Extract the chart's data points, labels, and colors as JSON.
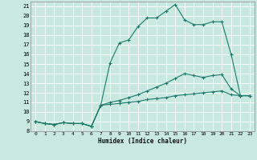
{
  "xlabel": "Humidex (Indice chaleur)",
  "bg_color": "#c8e8e0",
  "grid_color": "#ffffff",
  "line_color": "#1a7a6a",
  "xlim": [
    -0.5,
    23.5
  ],
  "ylim": [
    8,
    21.5
  ],
  "xticks": [
    0,
    1,
    2,
    3,
    4,
    5,
    6,
    7,
    8,
    9,
    10,
    11,
    12,
    13,
    14,
    15,
    16,
    17,
    18,
    19,
    20,
    21,
    22,
    23
  ],
  "yticks": [
    8,
    9,
    10,
    11,
    12,
    13,
    14,
    15,
    16,
    17,
    18,
    19,
    20,
    21
  ],
  "series": [
    {
      "x": [
        0,
        1,
        2,
        3,
        4,
        5,
        6,
        7,
        8,
        9,
        10,
        11,
        12,
        13,
        14,
        15,
        16,
        17,
        18,
        19,
        20,
        21,
        22,
        23
      ],
      "y": [
        9,
        8.8,
        8.7,
        8.9,
        8.8,
        8.8,
        8.5,
        10.7,
        15.1,
        17.2,
        17.5,
        18.9,
        19.8,
        19.8,
        20.5,
        21.2,
        19.6,
        19.1,
        19.1,
        19.4,
        19.4,
        16.0,
        11.7,
        11.7
      ]
    },
    {
      "x": [
        0,
        1,
        2,
        3,
        4,
        5,
        6,
        7,
        8,
        9,
        10,
        11,
        12,
        13,
        14,
        15,
        16,
        17,
        18,
        19,
        20,
        21,
        22,
        23
      ],
      "y": [
        9,
        8.8,
        8.7,
        8.9,
        8.8,
        8.8,
        8.5,
        10.7,
        11.0,
        11.2,
        11.5,
        11.8,
        12.2,
        12.6,
        13.0,
        13.5,
        14.0,
        13.8,
        13.6,
        13.8,
        13.9,
        12.4,
        11.7,
        11.7
      ]
    },
    {
      "x": [
        0,
        1,
        2,
        3,
        4,
        5,
        6,
        7,
        8,
        9,
        10,
        11,
        12,
        13,
        14,
        15,
        16,
        17,
        18,
        19,
        20,
        21,
        22,
        23
      ],
      "y": [
        9,
        8.8,
        8.7,
        8.9,
        8.8,
        8.8,
        8.5,
        10.7,
        10.8,
        10.9,
        11.0,
        11.1,
        11.3,
        11.4,
        11.5,
        11.7,
        11.8,
        11.9,
        12.0,
        12.1,
        12.2,
        11.8,
        11.7,
        11.7
      ]
    }
  ]
}
